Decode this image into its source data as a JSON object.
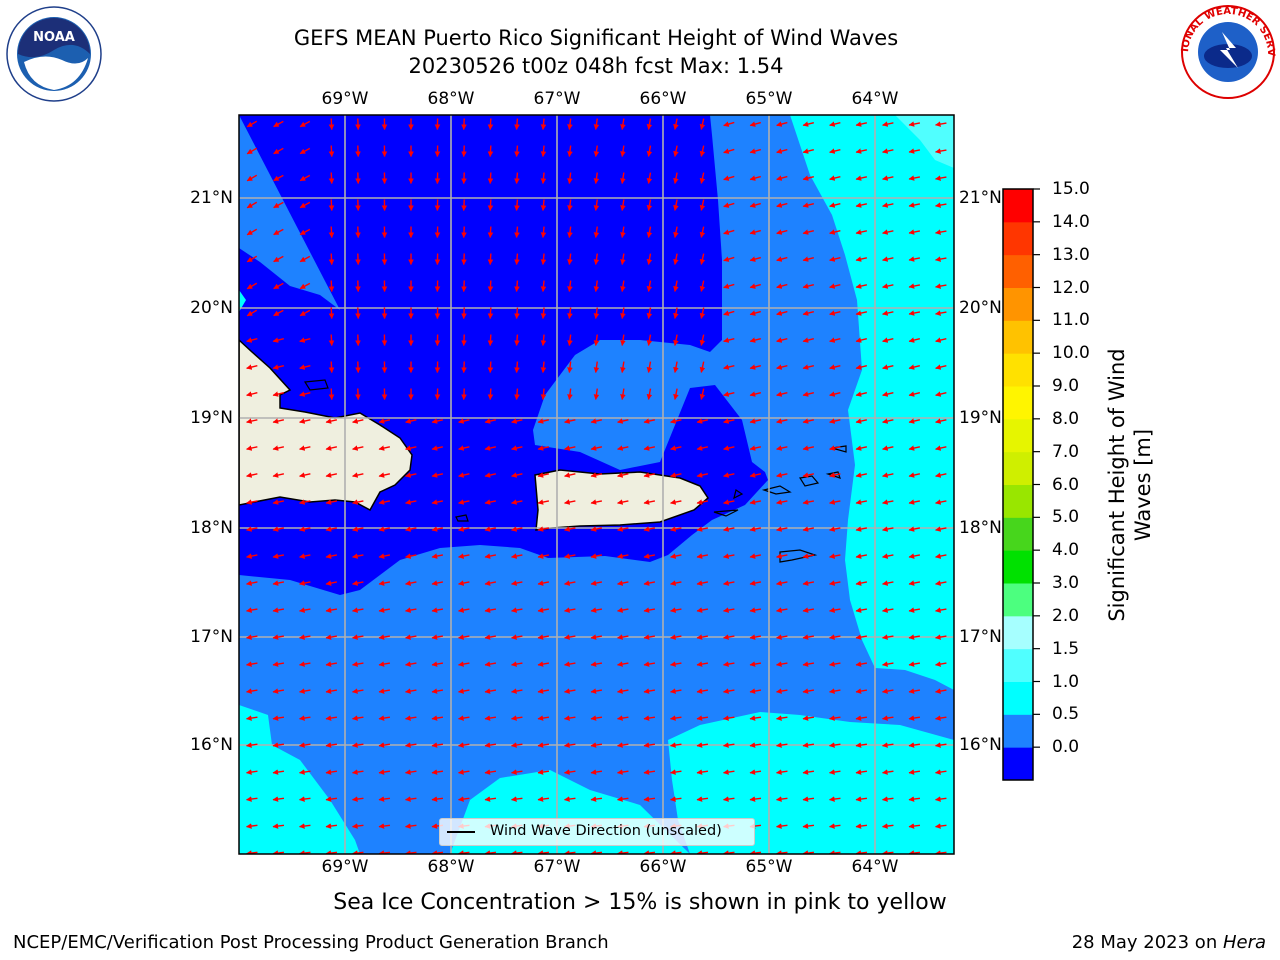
{
  "title_line1": "GEFS MEAN Puerto Rico Significant Height of Wind Waves",
  "title_line2": "20230526 t00z 048h fcst   Max: 1.54",
  "lon_labels": [
    "69°W",
    "68°W",
    "67°W",
    "66°W",
    "65°W",
    "64°W"
  ],
  "lat_labels": [
    "21°N",
    "20°N",
    "19°N",
    "18°N",
    "17°N",
    "16°N"
  ],
  "legend_label": "Wind Wave Direction (unscaled)",
  "colorbar": {
    "label": "Significant Height of Wind Waves [m]",
    "ticks": [
      "15.0",
      "14.0",
      "13.0",
      "12.0",
      "11.0",
      "10.0",
      "9.0",
      "8.0",
      "7.0",
      "6.0",
      "5.0",
      "4.0",
      "3.0",
      "2.0",
      "1.5",
      "1.0",
      "0.5",
      "0.0"
    ],
    "colors": [
      "#0000ff",
      "#1e82ff",
      "#00ffff",
      "#50ffff",
      "#a6ffff",
      "#4cff7f",
      "#00e100",
      "#47d61c",
      "#99e600",
      "#cfef00",
      "#e6f500",
      "#fff500",
      "#ffe100",
      "#ffc200",
      "#ff9400",
      "#ff6000",
      "#ff3600",
      "#ff0000"
    ]
  },
  "subtitle": "Sea Ice Concentration > 15% is shown in pink to yellow",
  "footer_left": "NCEP/EMC/Verification Post Processing Product Generation Branch",
  "footer_right_prefix": "28 May 2023 on ",
  "footer_right_host": "Hera",
  "logos": {
    "left": "NOAA",
    "right": "NATIONAL WEATHER SERVICE"
  },
  "colors": {
    "wave_low": "#0000ff",
    "wave_mid": "#1e82ff",
    "wave_high": "#00ffff",
    "wave_top": "#50ffff",
    "land": "#efefdf",
    "arrow": "#ff0000",
    "grid": "#b0b0b0"
  }
}
